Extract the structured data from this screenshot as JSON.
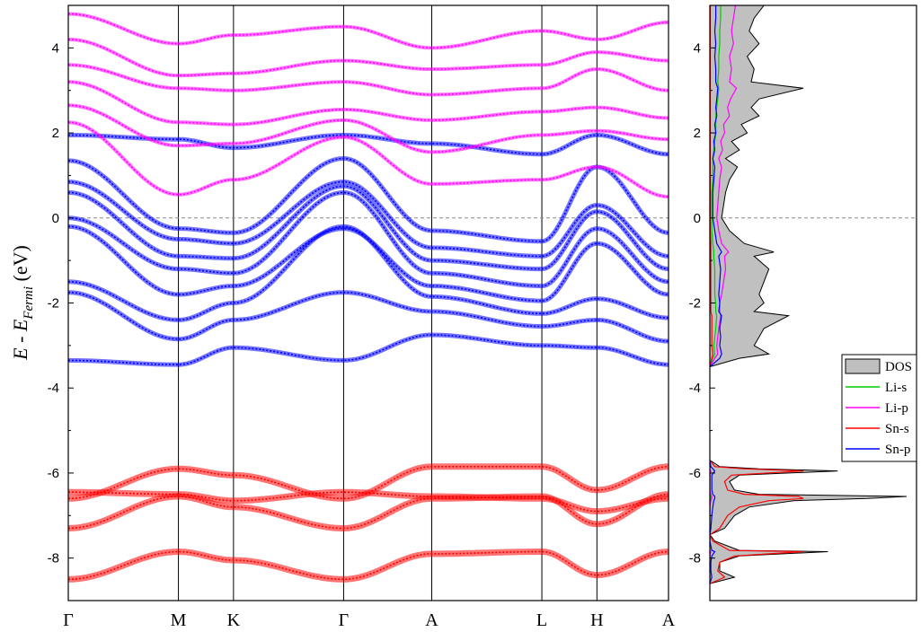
{
  "chart_data": [
    {
      "type": "line",
      "ylabel": {
        "prefix": "E - E",
        "sub": "Fermi",
        "suffix": " (eV)"
      },
      "ylim": [
        -9,
        5
      ],
      "yticks": [
        -8,
        -6,
        -4,
        -2,
        0,
        2,
        4
      ],
      "k_points": [
        "Γ",
        "M",
        "K",
        "Γ",
        "A",
        "L",
        "H",
        "A"
      ],
      "k_positions": [
        0,
        1.0,
        1.5,
        2.5,
        3.3,
        4.3,
        4.8,
        5.45
      ],
      "fermi_level": 0,
      "grid": "vertical lines at high-symmetry points",
      "series": [
        {
          "character": "Sn-s",
          "color": "#ff0000",
          "bands": [
            [
              -8.5,
              -7.85,
              -8.05,
              -8.5,
              -7.9,
              -7.85,
              -8.4,
              -7.85
            ],
            [
              -7.3,
              -6.55,
              -6.8,
              -7.3,
              -6.6,
              -6.55,
              -7.2,
              -6.5
            ],
            [
              -6.6,
              -5.9,
              -6.05,
              -6.6,
              -5.85,
              -5.85,
              -6.4,
              -5.85
            ],
            [
              -6.45,
              -6.5,
              -6.65,
              -6.45,
              -6.55,
              -6.6,
              -6.9,
              -6.6
            ]
          ]
        },
        {
          "character": "Sn-p",
          "color": "#0000ff",
          "bands": [
            [
              -3.35,
              -3.45,
              -3.05,
              -3.35,
              -2.75,
              -3.0,
              -3.05,
              -3.45
            ],
            [
              -1.75,
              -2.85,
              -2.4,
              -1.75,
              -2.2,
              -2.55,
              -2.4,
              -2.9
            ],
            [
              -1.5,
              -2.4,
              -2.0,
              -0.2,
              -1.85,
              -2.25,
              -1.9,
              -2.35
            ],
            [
              -0.2,
              -1.8,
              -1.6,
              -0.25,
              -1.6,
              -1.95,
              -0.6,
              -1.8
            ],
            [
              0.0,
              -1.2,
              -1.3,
              0.6,
              -1.3,
              -1.6,
              -0.25,
              -1.5
            ],
            [
              0.6,
              -0.9,
              -0.95,
              0.75,
              -1.0,
              -1.2,
              0.15,
              -1.2
            ],
            [
              0.85,
              -0.5,
              -0.6,
              0.85,
              -0.7,
              -0.9,
              0.3,
              -0.9
            ],
            [
              1.35,
              -0.25,
              -0.35,
              1.4,
              -0.3,
              -0.55,
              1.2,
              -0.35
            ],
            [
              1.95,
              1.85,
              1.65,
              1.95,
              1.75,
              1.5,
              1.95,
              1.5
            ]
          ]
        },
        {
          "character": "Li-p",
          "color": "#ff00ff",
          "bands": [
            [
              2.25,
              0.55,
              0.9,
              1.9,
              0.8,
              0.9,
              1.2,
              0.5
            ],
            [
              2.65,
              1.7,
              1.75,
              2.3,
              1.55,
              1.95,
              2.05,
              1.85
            ],
            [
              3.2,
              2.25,
              2.2,
              2.55,
              2.3,
              2.5,
              2.6,
              2.35
            ],
            [
              3.6,
              3.05,
              3.0,
              3.2,
              2.9,
              3.05,
              3.5,
              3.0
            ],
            [
              4.2,
              3.35,
              3.4,
              3.7,
              3.5,
              3.6,
              3.9,
              3.7
            ],
            [
              4.8,
              4.1,
              4.3,
              4.5,
              4.0,
              4.4,
              4.2,
              4.6
            ]
          ]
        }
      ]
    },
    {
      "type": "area",
      "orientation": "horizontal",
      "ylim": [
        -9,
        5
      ],
      "yticks": [
        -8,
        -6,
        -4,
        -2,
        0,
        2,
        4
      ],
      "legend_position": "right",
      "legend": [
        {
          "label": "DOS",
          "color": "#c0c0c0",
          "kind": "fill"
        },
        {
          "label": "Li-s",
          "color": "#00cc00",
          "kind": "line"
        },
        {
          "label": "Li-p",
          "color": "#ff00ff",
          "kind": "line"
        },
        {
          "label": "Sn-s",
          "color": "#ff0000",
          "kind": "line"
        },
        {
          "label": "Sn-p",
          "color": "#0000ff",
          "kind": "line"
        }
      ],
      "dos": {
        "energies": [
          -8.6,
          -8.45,
          -8.3,
          -8.1,
          -7.95,
          -7.85,
          -7.82,
          -7.6,
          -7.45,
          -7.3,
          -7.0,
          -6.8,
          -6.65,
          -6.6,
          -6.55,
          -6.5,
          -6.4,
          -6.2,
          -6.05,
          -5.95,
          -5.9,
          -5.85,
          -5.7,
          -3.5,
          -3.3,
          -3.2,
          -3.0,
          -2.8,
          -2.6,
          -2.3,
          -2.2,
          -2.0,
          -1.8,
          -1.5,
          -1.2,
          -0.9,
          -0.8,
          -0.6,
          -0.3,
          0.0,
          0.3,
          0.6,
          0.9,
          1.2,
          1.4,
          1.6,
          1.8,
          2.0,
          2.2,
          2.4,
          2.6,
          2.8,
          3.05,
          3.2,
          3.5,
          3.8,
          4.1,
          4.4,
          4.7,
          5.0
        ],
        "total": [
          0,
          0.25,
          0.1,
          0.1,
          0.3,
          1.2,
          0.3,
          0.05,
          0,
          0.15,
          0.25,
          0.4,
          0.85,
          1.6,
          2.0,
          0.5,
          0.25,
          0.2,
          0.3,
          1.3,
          0.5,
          0.1,
          0,
          0,
          0.3,
          0.6,
          0.45,
          0.5,
          0.55,
          0.8,
          0.45,
          0.55,
          0.5,
          0.55,
          0.6,
          0.45,
          0.65,
          0.35,
          0.2,
          0.12,
          0.14,
          0.16,
          0.2,
          0.28,
          0.16,
          0.3,
          0.22,
          0.38,
          0.32,
          0.5,
          0.42,
          0.5,
          0.95,
          0.42,
          0.45,
          0.38,
          0.5,
          0.4,
          0.45,
          0.55
        ],
        "Li-s": [
          0,
          0,
          0,
          0,
          0,
          0.005,
          0,
          0,
          0,
          0,
          0,
          0,
          0,
          0.01,
          0.01,
          0,
          0,
          0,
          0,
          0.005,
          0,
          0,
          0,
          0,
          0.03,
          0.05,
          0.04,
          0.05,
          0.06,
          0.07,
          0.06,
          0.06,
          0.05,
          0.05,
          0.05,
          0.04,
          0.04,
          0.03,
          0.02,
          0.02,
          0.02,
          0.02,
          0.03,
          0.03,
          0.03,
          0.04,
          0.05,
          0.06,
          0.06,
          0.06,
          0.07,
          0.08,
          0.09,
          0.08,
          0.09,
          0.09,
          0.1,
          0.1,
          0.11,
          0.11
        ],
        "Li-p": [
          0,
          0,
          0,
          0,
          0,
          0.01,
          0,
          0,
          0,
          0,
          0,
          0,
          0.01,
          0.02,
          0.02,
          0.01,
          0,
          0,
          0,
          0.01,
          0,
          0,
          0,
          0,
          0.05,
          0.08,
          0.07,
          0.08,
          0.09,
          0.11,
          0.1,
          0.1,
          0.12,
          0.14,
          0.16,
          0.15,
          0.19,
          0.12,
          0.09,
          0.07,
          0.08,
          0.09,
          0.1,
          0.12,
          0.09,
          0.13,
          0.11,
          0.15,
          0.14,
          0.2,
          0.18,
          0.21,
          0.27,
          0.2,
          0.22,
          0.2,
          0.24,
          0.22,
          0.24,
          0.26
        ],
        "Sn-s": [
          0,
          0.15,
          0.08,
          0.1,
          0.25,
          0.95,
          0.2,
          0.03,
          0,
          0.1,
          0.18,
          0.3,
          0.6,
          0.95,
          0.9,
          0.35,
          0.18,
          0.15,
          0.22,
          0.95,
          0.35,
          0.05,
          0,
          0,
          0.02,
          0.03,
          0.02,
          0.02,
          0.02,
          0.02,
          0.01,
          0.01,
          0.01,
          0.01,
          0.01,
          0.01,
          0.01,
          0.01,
          0.005,
          0.005,
          0.005,
          0.005,
          0.005,
          0.005,
          0.005,
          0.005,
          0.005,
          0.005,
          0.005,
          0.005,
          0.005,
          0.005,
          0.005,
          0.005,
          0.005,
          0.005,
          0.005,
          0.005,
          0.005,
          0.005
        ],
        "Sn-p": [
          0,
          0.02,
          0.01,
          0.01,
          0.02,
          0.05,
          0.02,
          0,
          0,
          0.01,
          0.02,
          0.03,
          0.04,
          0.05,
          0.05,
          0.03,
          0.02,
          0.02,
          0.02,
          0.05,
          0.03,
          0.01,
          0,
          0,
          0.1,
          0.12,
          0.1,
          0.11,
          0.1,
          0.12,
          0.09,
          0.1,
          0.09,
          0.1,
          0.11,
          0.09,
          0.12,
          0.07,
          0.05,
          0.03,
          0.03,
          0.03,
          0.04,
          0.05,
          0.03,
          0.05,
          0.04,
          0.06,
          0.05,
          0.07,
          0.06,
          0.07,
          0.08,
          0.06,
          0.06,
          0.05,
          0.06,
          0.05,
          0.06,
          0.06
        ]
      }
    }
  ]
}
